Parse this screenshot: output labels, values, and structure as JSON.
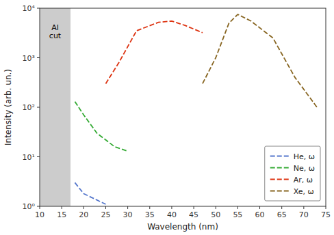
{
  "chart_data": {
    "type": "line",
    "xlabel": "Wavelength (nm)",
    "ylabel": "Intensity (arb. un.)",
    "log": "y",
    "grid": false,
    "legend": "lower right",
    "xlim": [
      10,
      75
    ],
    "ylim": [
      1,
      10000
    ],
    "xticks": [
      10,
      15,
      20,
      25,
      30,
      35,
      40,
      45,
      50,
      55,
      60,
      65,
      70,
      75
    ],
    "yticks": [
      {
        "value": 1,
        "label": "10⁰"
      },
      {
        "value": 10,
        "label": "10¹"
      },
      {
        "value": 100,
        "label": "10²"
      },
      {
        "value": 1000,
        "label": "10³"
      },
      {
        "value": 10000,
        "label": "10⁴"
      }
    ],
    "spans": [
      {
        "x0": 10,
        "x1": 17.0,
        "color": "#cccccc"
      }
    ],
    "annotations": [
      {
        "text": "Al\ncut",
        "x": 13.5,
        "y": 5000
      }
    ],
    "series": [
      {
        "name": "He, ω",
        "color": "#5577cc",
        "line_style": "dashed",
        "x": [
          18,
          20,
          25
        ],
        "values": [
          3.0,
          1.8,
          1.1
        ]
      },
      {
        "name": "Ne, ω",
        "color": "#33aa33",
        "line_style": "dashed",
        "x": [
          18,
          20,
          23,
          27,
          30
        ],
        "values": [
          130,
          70,
          30,
          16,
          13
        ]
      },
      {
        "name": "Ar, ω",
        "color": "#dd3311",
        "line_style": "dashed",
        "x": [
          25,
          28,
          32,
          37,
          40,
          43,
          47
        ],
        "values": [
          300,
          800,
          3500,
          5200,
          5500,
          4500,
          3200
        ]
      },
      {
        "name": "Xe, ω",
        "color": "#886622",
        "line_style": "dashed",
        "x": [
          47,
          50,
          53,
          55,
          58,
          63,
          68,
          73
        ],
        "values": [
          300,
          1000,
          5000,
          7500,
          5500,
          2500,
          400,
          100
        ]
      }
    ]
  }
}
